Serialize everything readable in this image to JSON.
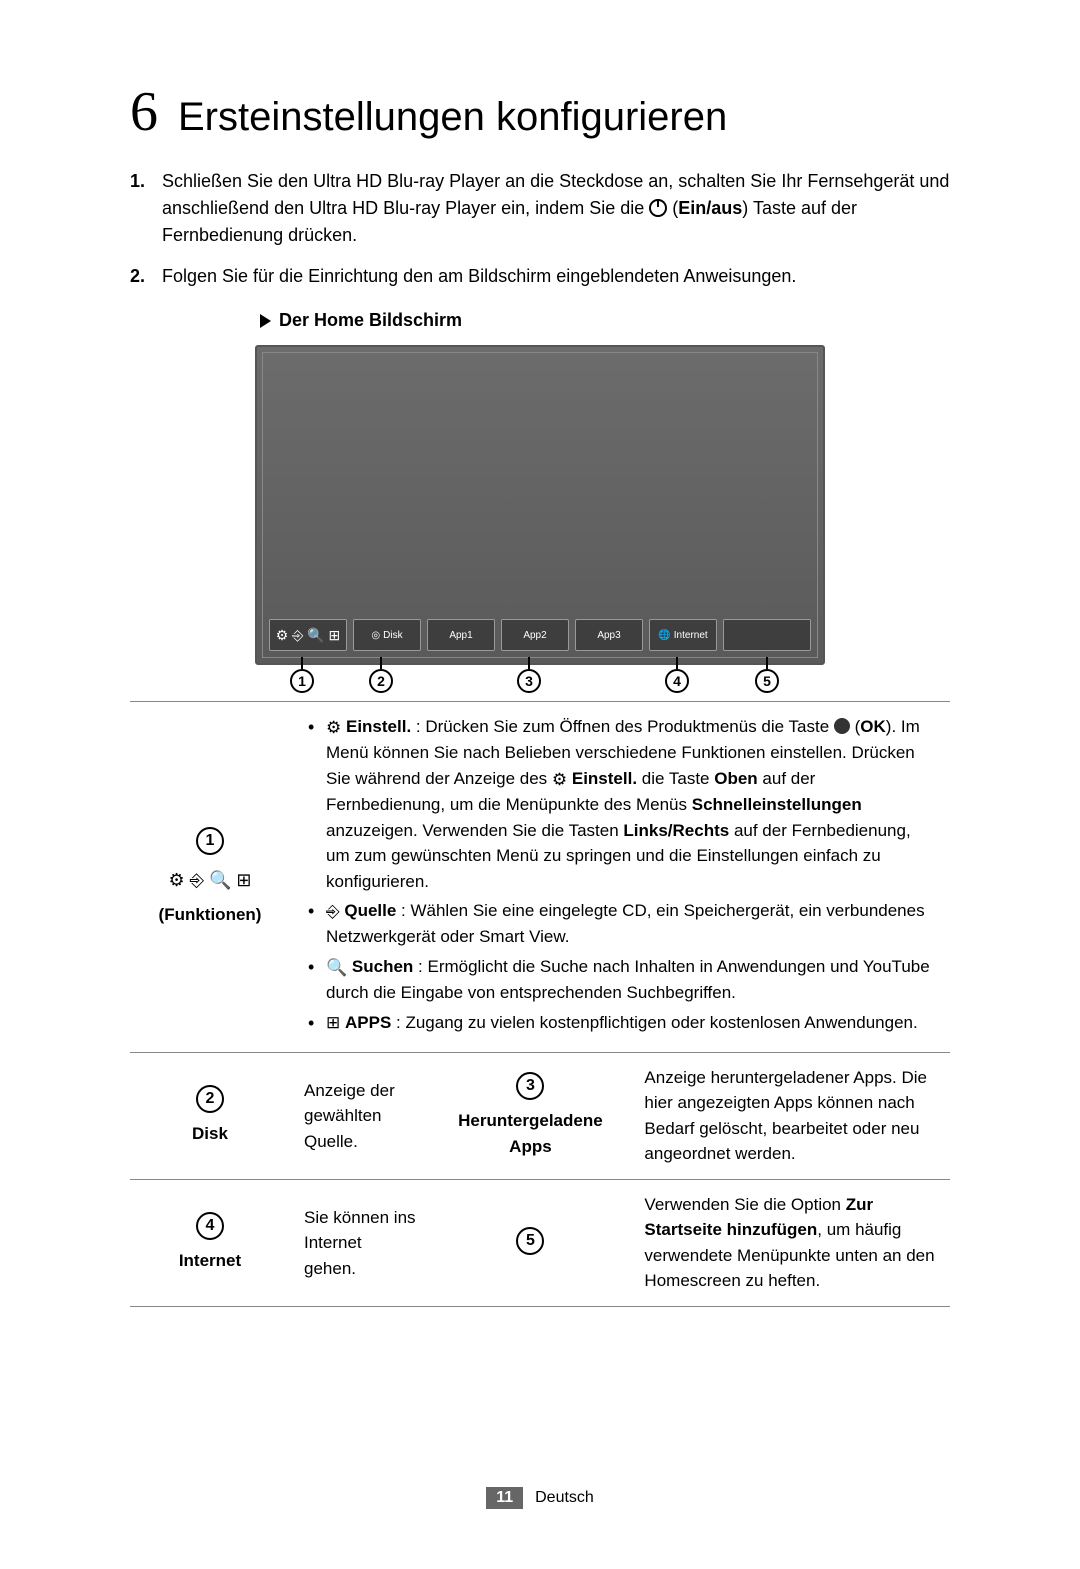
{
  "section": {
    "number": "6",
    "title": "Ersteinstellungen konfigurieren"
  },
  "steps": [
    {
      "num": "1.",
      "pre": "Schließen Sie den Ultra HD Blu-ray Player an die Steckdose an, schalten Sie Ihr Fernsehgerät und anschließend den Ultra HD Blu-ray Player ein, indem Sie die ",
      "btn": "Ein/aus",
      "post": ") Taste auf der Fernbedienung drücken."
    },
    {
      "num": "2.",
      "text": "Folgen Sie für die Einrichtung den am Bildschirm eingeblendeten Anweisungen."
    }
  ],
  "screen_heading": "Der Home Bildschirm",
  "dock": {
    "func_icons": "⚙ ⎆ 🔍 ⊞",
    "tiles": [
      "Disk",
      "App1",
      "App2",
      "App3",
      "Internet"
    ],
    "disk_icon": "◎",
    "net_icon": "🌐"
  },
  "callouts": [
    "1",
    "2",
    "3",
    "4",
    "5"
  ],
  "table": {
    "row1": {
      "callout": "1",
      "icons": "⚙ ⎆ 🔍 ⊞",
      "label": "(Funktionen)",
      "b1_lead": "Einstell.",
      "b1_a": " : Drücken Sie zum Öffnen des Produktmenüs die Taste ",
      "b1_ok": "OK",
      "b1_b": "). Im Menü können Sie nach Belieben verschiedene Funktionen einstellen. Drücken Sie während der Anzeige des ",
      "b1_einst": "Einstell.",
      "b1_c": " die Taste ",
      "b1_oben": "Oben",
      "b1_d": " auf der Fernbedienung, um die Menüpunkte des Menüs ",
      "b1_schnell": "Schnelleinstellungen",
      "b1_e": " anzuzeigen. Verwenden Sie die Tasten ",
      "b1_lr": "Links/Rechts",
      "b1_f": " auf der Fernbedienung, um zum gewünschten Menü zu springen und die Einstellungen einfach zu konfigurieren.",
      "b2_lead": "Quelle",
      "b2_t": " : Wählen Sie eine eingelegte CD, ein Speichergerät, ein verbundenes Netzwerkgerät oder Smart View.",
      "b3_lead": "Suchen",
      "b3_t": " : Ermöglicht die Suche nach Inhalten in Anwendungen und YouTube durch die Eingabe von entsprechenden Suchbegriffen.",
      "b4_lead": "APPS",
      "b4_t": " : Zugang zu vielen kostenpflichtigen oder kostenlosen Anwendungen."
    },
    "row2": {
      "c2": "2",
      "l2": "Disk",
      "d2": "Anzeige der gewählten Quelle.",
      "c3": "3",
      "l3": "Heruntergeladene Apps",
      "d3": "Anzeige heruntergeladener Apps. Die hier angezeigten Apps können nach Bedarf gelöscht, bearbeitet oder neu angeordnet werden."
    },
    "row3": {
      "c4": "4",
      "l4": "Internet",
      "d4": "Sie können ins Internet gehen.",
      "c5": "5",
      "d5a": "Verwenden Sie die Option ",
      "d5b": "Zur Startseite hinzufügen",
      "d5c": ", um häufig verwendete Menüpunkte unten an den Homescreen zu heften."
    }
  },
  "footer": {
    "page": "11",
    "lang": "Deutsch"
  },
  "colors": {
    "tv_bg": "#6c6c6c",
    "border": "#888888",
    "footer_box": "#666666"
  }
}
